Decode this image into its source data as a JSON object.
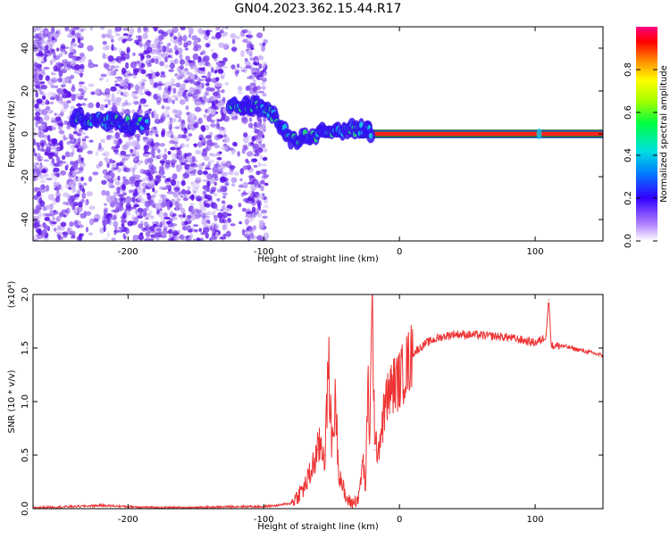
{
  "title": "GN04.2023.362.15.44.R17",
  "chart_data": [
    {
      "type": "heatmap",
      "xlabel": "Height of straight line (km)",
      "ylabel": "Frequency (Hz)",
      "xlim": [
        -270,
        150
      ],
      "ylim": [
        -50,
        50
      ],
      "xticks": [
        -200,
        -100,
        0,
        100
      ],
      "yticks": [
        -40,
        -20,
        0,
        20,
        40
      ],
      "colorbar": {
        "label": "Normalized spectral amplitude",
        "range": [
          0,
          1
        ],
        "ticks": [
          "0.0",
          "0.2",
          "0.4",
          "0.6",
          "0.8"
        ],
        "tick_values": [
          0,
          0.2,
          0.4,
          0.6,
          0.8
        ]
      },
      "signal_track": [
        {
          "x": -240,
          "y": 8
        },
        {
          "x": -225,
          "y": 6
        },
        {
          "x": -205,
          "y": 5
        },
        {
          "x": -185,
          "y": 4
        },
        {
          "x": -125,
          "y": 15
        },
        {
          "x": -110,
          "y": 13
        },
        {
          "x": -95,
          "y": 10
        },
        {
          "x": -80,
          "y": -3
        },
        {
          "x": -65,
          "y": -1
        },
        {
          "x": -50,
          "y": 0
        },
        {
          "x": -35,
          "y": 3
        },
        {
          "x": -20,
          "y": 0
        },
        {
          "x": 0,
          "y": 0
        },
        {
          "x": 103,
          "y": 0
        },
        {
          "x": 150,
          "y": 0
        }
      ]
    },
    {
      "type": "line",
      "xlabel": "Height of straight line (km)",
      "ylabel": "SNR (10 * v/v)",
      "y_multiplier": "(x10⁴)",
      "xlim": [
        -270,
        150
      ],
      "ylim": [
        0,
        2.0
      ],
      "xticks": [
        -200,
        -100,
        0,
        100
      ],
      "yticks": [
        "0.0",
        "0.5",
        "1.0",
        "1.5",
        "2.0"
      ],
      "ytick_values": [
        0,
        0.5,
        1.0,
        1.5,
        2.0
      ],
      "color": "#ee3333",
      "series": [
        {
          "x": [
            -270,
            -240,
            -220,
            -200,
            -180,
            -150,
            -120,
            -100,
            -90,
            -80,
            -75,
            -70,
            -65,
            -60,
            -58,
            -55,
            -52,
            -50,
            -47,
            -45,
            -40,
            -35,
            -30,
            -27,
            -25,
            -23,
            -22,
            -20,
            -18,
            -15,
            -10,
            -5,
            0,
            10,
            20,
            30,
            40,
            60,
            80,
            100,
            105,
            108,
            110,
            112,
            120,
            150
          ],
          "values": [
            0.01,
            0.02,
            0.03,
            0.02,
            0.01,
            0.01,
            0.02,
            0.02,
            0.03,
            0.05,
            0.12,
            0.2,
            0.35,
            0.55,
            0.6,
            0.5,
            1.35,
            0.6,
            1.0,
            0.4,
            0.1,
            0.05,
            0.1,
            0.45,
            0.2,
            1.2,
            0.65,
            1.85,
            0.55,
            0.6,
            1.0,
            1.15,
            1.2,
            1.45,
            1.55,
            1.6,
            1.63,
            1.62,
            1.6,
            1.55,
            1.58,
            1.62,
            1.95,
            1.52,
            1.52,
            1.43
          ]
        }
      ]
    }
  ]
}
